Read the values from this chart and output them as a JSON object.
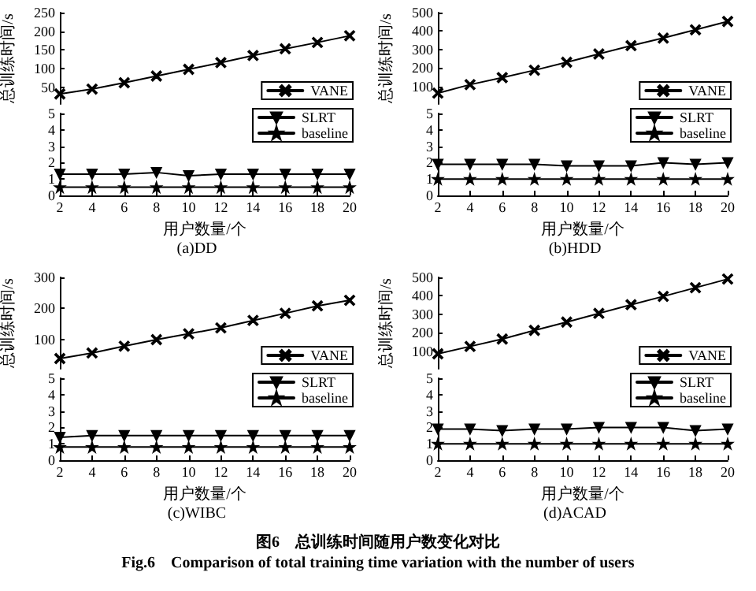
{
  "chart_data": [
    {
      "type": "line",
      "ylabel": "总训练时间/s",
      "x": [
        2,
        4,
        6,
        8,
        10,
        12,
        14,
        16,
        18,
        20
      ],
      "xlim": [
        2,
        20
      ],
      "ylim": [
        5,
        250
      ],
      "yticks": [
        50,
        100,
        150,
        200,
        250
      ],
      "tick_labels": "y",
      "legend": "bottom right",
      "series": [
        {
          "name": "VANE",
          "color": "#000000",
          "marker": "cross",
          "values": [
            32,
            45,
            62,
            80,
            98,
            116,
            135,
            153,
            170,
            188
          ]
        }
      ]
    },
    {
      "type": "line",
      "title": "(a)DD",
      "xlabel": "用户数量/个",
      "x": [
        2,
        4,
        6,
        8,
        10,
        12,
        14,
        16,
        18,
        20
      ],
      "xlim": [
        2,
        20
      ],
      "ylim": [
        0,
        5
      ],
      "xticks": [
        2,
        4,
        6,
        8,
        10,
        12,
        14,
        16,
        18,
        20
      ],
      "yticks": [
        0,
        1,
        2,
        3,
        4,
        5
      ],
      "legend": "top right",
      "series": [
        {
          "name": "SLRT",
          "color": "#000000",
          "marker": "triangle",
          "values": [
            1.3,
            1.3,
            1.3,
            1.4,
            1.2,
            1.3,
            1.3,
            1.3,
            1.3,
            1.3
          ]
        },
        {
          "name": "baseline",
          "color": "#000000",
          "marker": "star",
          "values": [
            0.5,
            0.5,
            0.5,
            0.5,
            0.5,
            0.5,
            0.5,
            0.5,
            0.5,
            0.5
          ]
        }
      ]
    },
    {
      "type": "line",
      "ylabel": "总训练时间/s",
      "x": [
        2,
        4,
        6,
        8,
        10,
        12,
        14,
        16,
        18,
        20
      ],
      "xlim": [
        2,
        20
      ],
      "ylim": [
        5,
        500
      ],
      "yticks": [
        100,
        200,
        300,
        400,
        500
      ],
      "tick_labels": "y",
      "legend": "bottom right",
      "series": [
        {
          "name": "VANE",
          "color": "#000000",
          "marker": "cross",
          "values": [
            64,
            110,
            148,
            188,
            231,
            276,
            321,
            362,
            407,
            452
          ]
        }
      ]
    },
    {
      "type": "line",
      "title": "(b)HDD",
      "xlabel": "用户数量/个",
      "x": [
        2,
        4,
        6,
        8,
        10,
        12,
        14,
        16,
        18,
        20
      ],
      "xlim": [
        2,
        20
      ],
      "ylim": [
        0,
        5
      ],
      "xticks": [
        2,
        4,
        6,
        8,
        10,
        12,
        14,
        16,
        18,
        20
      ],
      "yticks": [
        0,
        1,
        2,
        3,
        4,
        5
      ],
      "legend": "top right",
      "series": [
        {
          "name": "SLRT",
          "color": "#000000",
          "marker": "triangle",
          "values": [
            1.9,
            1.9,
            1.9,
            1.9,
            1.8,
            1.8,
            1.8,
            2.0,
            1.9,
            2.0
          ]
        },
        {
          "name": "baseline",
          "color": "#000000",
          "marker": "star",
          "values": [
            1.0,
            1.0,
            1.0,
            1.0,
            1.0,
            1.0,
            1.0,
            1.0,
            1.0,
            1.0
          ]
        }
      ]
    },
    {
      "type": "line",
      "ylabel": "总训练时间/s",
      "x": [
        2,
        4,
        6,
        8,
        10,
        12,
        14,
        16,
        18,
        20
      ],
      "xlim": [
        2,
        20
      ],
      "ylim": [
        5,
        300
      ],
      "yticks": [
        100,
        200,
        300
      ],
      "tick_labels": "y",
      "legend": "bottom right",
      "series": [
        {
          "name": "VANE",
          "color": "#000000",
          "marker": "cross",
          "values": [
            38,
            56,
            78,
            99,
            118,
            137,
            161,
            184,
            208,
            226
          ]
        }
      ]
    },
    {
      "type": "line",
      "title": "(c)WIBC",
      "xlabel": "用户数量/个",
      "x": [
        2,
        4,
        6,
        8,
        10,
        12,
        14,
        16,
        18,
        20
      ],
      "xlim": [
        2,
        20
      ],
      "ylim": [
        0,
        5
      ],
      "xticks": [
        2,
        4,
        6,
        8,
        10,
        12,
        14,
        16,
        18,
        20
      ],
      "yticks": [
        0,
        1,
        2,
        3,
        4,
        5
      ],
      "legend": "top right",
      "series": [
        {
          "name": "SLRT",
          "color": "#000000",
          "marker": "triangle",
          "values": [
            1.4,
            1.5,
            1.5,
            1.5,
            1.5,
            1.5,
            1.5,
            1.5,
            1.5,
            1.5
          ]
        },
        {
          "name": "baseline",
          "color": "#000000",
          "marker": "star",
          "values": [
            0.8,
            0.8,
            0.8,
            0.8,
            0.8,
            0.8,
            0.8,
            0.8,
            0.8,
            0.8
          ]
        }
      ]
    },
    {
      "type": "line",
      "ylabel": "总训练时间/s",
      "x": [
        2,
        4,
        6,
        8,
        10,
        12,
        14,
        16,
        18,
        20
      ],
      "xlim": [
        2,
        20
      ],
      "ylim": [
        5,
        500
      ],
      "yticks": [
        100,
        200,
        300,
        400,
        500
      ],
      "tick_labels": "y",
      "legend": "bottom right",
      "series": [
        {
          "name": "VANE",
          "color": "#000000",
          "marker": "cross",
          "values": [
            86,
            126,
            166,
            213,
            258,
            305,
            352,
            397,
            444,
            491
          ]
        }
      ]
    },
    {
      "type": "line",
      "title": "(d)ACAD",
      "xlabel": "用户数量/个",
      "x": [
        2,
        4,
        6,
        8,
        10,
        12,
        14,
        16,
        18,
        20
      ],
      "xlim": [
        2,
        20
      ],
      "ylim": [
        0,
        5
      ],
      "xticks": [
        2,
        4,
        6,
        8,
        10,
        12,
        14,
        16,
        18,
        20
      ],
      "yticks": [
        0,
        1,
        2,
        3,
        4,
        5
      ],
      "legend": "top right",
      "annotations": [
        "图6　总训练时间随用户数变化对比",
        "Fig.6　Comparison of total training time variation with the number of users"
      ],
      "series": [
        {
          "name": "SLRT",
          "color": "#000000",
          "marker": "triangle",
          "values": [
            1.9,
            1.9,
            1.8,
            1.9,
            1.9,
            2.0,
            2.0,
            2.0,
            1.8,
            1.9
          ]
        },
        {
          "name": "baseline",
          "color": "#000000",
          "marker": "star",
          "values": [
            1.0,
            1.0,
            1.0,
            1.0,
            1.0,
            1.0,
            1.0,
            1.0,
            1.0,
            1.0
          ]
        }
      ]
    }
  ]
}
